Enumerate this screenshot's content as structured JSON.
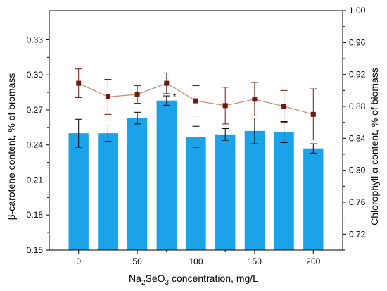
{
  "chart_data": {
    "type": "bar",
    "categories": [
      "0",
      "25",
      "50",
      "75",
      "100",
      "125",
      "150",
      "175",
      "200"
    ],
    "x_tick_labels": [
      "0",
      "50",
      "100",
      "150",
      "200"
    ],
    "xlabel": {
      "prefix": "Na",
      "sub1": "2",
      "middle": "SeO",
      "sub2": "3",
      "suffix": " concentration, mg/L"
    },
    "left_axis": {
      "label": "β-carotene content, % of biomass",
      "ylim": [
        0.15,
        0.355
      ],
      "ticks": [
        "0.15",
        "0.18",
        "0.21",
        "0.24",
        "0.27",
        "0.30",
        "0.33"
      ]
    },
    "right_axis": {
      "label": "Chlorophyll α content, % of biomass",
      "ylim": [
        0.7,
        1.0
      ],
      "ticks": [
        "0.72",
        "0.76",
        "0.80",
        "0.84",
        "0.88",
        "0.92",
        "0.96",
        "1.00"
      ]
    },
    "series": [
      {
        "type": "bar",
        "axis": "left",
        "color": "#1aa3e8",
        "values": [
          0.25,
          0.25,
          0.263,
          0.278,
          0.247,
          0.249,
          0.252,
          0.251,
          0.237
        ],
        "errors": [
          0.012,
          0.007,
          0.005,
          0.004,
          0.009,
          0.005,
          0.011,
          0.009,
          0.004
        ]
      },
      {
        "type": "line",
        "axis": "right",
        "color": "#c98a6e",
        "marker_color": "#6a1a10",
        "values": [
          0.909,
          0.892,
          0.895,
          0.909,
          0.887,
          0.881,
          0.889,
          0.88,
          0.87
        ],
        "errors": [
          0.018,
          0.022,
          0.011,
          0.013,
          0.019,
          0.023,
          0.021,
          0.02,
          0.032
        ]
      }
    ],
    "annotations": [
      {
        "text": "*",
        "category_index": 3
      }
    ]
  }
}
